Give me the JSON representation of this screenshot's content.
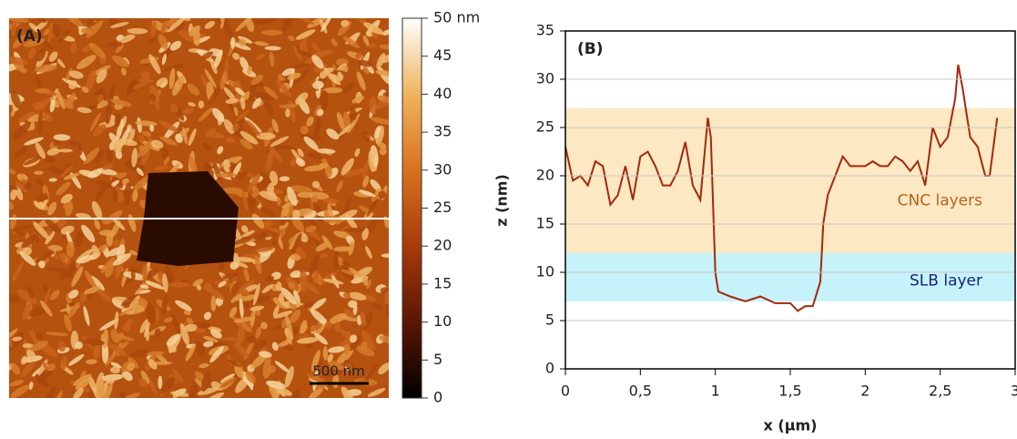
{
  "chart_data": [
    {
      "type": "image",
      "label": "(A)",
      "scale_bar": "500 nm",
      "colormap": [
        "#000000",
        "#5a1604",
        "#a83a0a",
        "#d9721f",
        "#f0b35e",
        "#ffffff"
      ],
      "colorbar_lim": [
        0,
        50
      ],
      "colorbar_ticks": [
        0,
        5,
        10,
        15,
        20,
        25,
        30,
        35,
        40,
        45,
        {
          "value": 50,
          "label": "50 nm"
        }
      ]
    },
    {
      "type": "line",
      "label": "(B)",
      "x_label": "x (µm)",
      "y_label": "z (nm)",
      "xlim": [
        0,
        3
      ],
      "ylim": [
        0,
        35
      ],
      "xticks": [
        0,
        {
          "value": 0.5,
          "label": "0,5"
        },
        1,
        {
          "value": 1.5,
          "label": "1,5"
        },
        2,
        {
          "value": 2.5,
          "label": "2,5"
        },
        3
      ],
      "yticks": [
        0,
        5,
        10,
        15,
        20,
        25,
        30,
        35
      ],
      "grid": true,
      "bands": [
        {
          "name": "CNC layers",
          "range": [
            12,
            27
          ],
          "color": "#fce8c2",
          "text_color": "#b5651d"
        },
        {
          "name": "SLB layer",
          "range": [
            7,
            12
          ],
          "color": "#c6f2fa",
          "text_color": "#1a237e"
        }
      ],
      "x": [
        0,
        0.05,
        0.1,
        0.15,
        0.2,
        0.25,
        0.3,
        0.35,
        0.4,
        0.45,
        0.5,
        0.55,
        0.6,
        0.65,
        0.7,
        0.75,
        0.8,
        0.85,
        0.9,
        0.95,
        0.97,
        1.0,
        1.02,
        1.1,
        1.2,
        1.3,
        1.4,
        1.5,
        1.55,
        1.6,
        1.65,
        1.7,
        1.72,
        1.75,
        1.8,
        1.85,
        1.9,
        1.95,
        2.0,
        2.05,
        2.1,
        2.15,
        2.2,
        2.25,
        2.3,
        2.35,
        2.4,
        2.45,
        2.5,
        2.55,
        2.6,
        2.62,
        2.65,
        2.7,
        2.75,
        2.8,
        2.83,
        2.88
      ],
      "series": [
        {
          "color": "#a3290b",
          "values": [
            23,
            19.5,
            20,
            19,
            21.5,
            21,
            17,
            18,
            21,
            17.5,
            22,
            22.5,
            21,
            19,
            19,
            20.5,
            23.5,
            19,
            17.5,
            26,
            24,
            10,
            8,
            7.5,
            7,
            7.5,
            6.8,
            6.8,
            6,
            6.5,
            6.5,
            9,
            15,
            18,
            20,
            22,
            21,
            21,
            21,
            21.5,
            21,
            21,
            22,
            21.5,
            20.5,
            21.5,
            19,
            25,
            23,
            24,
            28,
            31.5,
            29,
            24,
            23,
            20,
            20,
            26
          ]
        }
      ]
    }
  ]
}
